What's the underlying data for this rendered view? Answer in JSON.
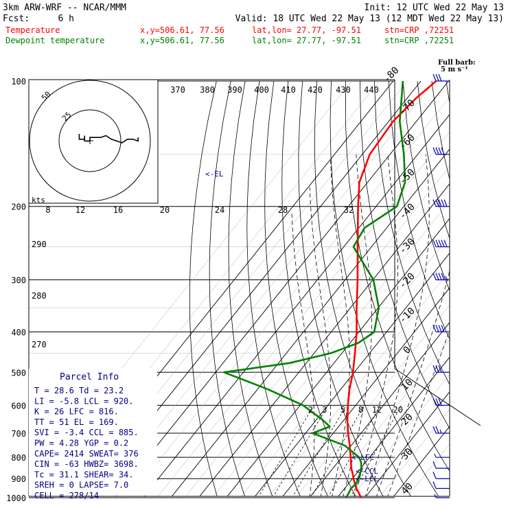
{
  "header": {
    "model": "3km ARW-WRF -- NCAR/MMM",
    "init": "Init: 12 UTC Wed 22 May 13",
    "fcst_label": "Fcst:",
    "fcst_value": "6 h",
    "valid": "Valid: 18 UTC Wed 22 May 13 (12 MDT Wed 22 May 13)",
    "temp_label": "Temperature",
    "dew_label": "Dewpoint temperature",
    "xy": "x,y=506.61, 77.56",
    "latlon": "lat,lon= 27.77, -97.51",
    "stn": "stn=CRP ,72251",
    "full_barb": "Full barb:",
    "full_barb_units": "5 m s⁻¹"
  },
  "colors": {
    "temperature": "#ff0000",
    "dewpoint": "#008000",
    "wind": "#0000c0",
    "parcel": "#000080"
  },
  "hodograph": {
    "ring_labels": [
      "25",
      "50"
    ],
    "kts_label": "kts"
  },
  "annotations": {
    "el": "<-EL",
    "lfc": "<-LFC",
    "ccl": "<-CCL",
    "lcl": "<-LCL"
  },
  "parcel_info": {
    "title": "Parcel Info",
    "rows": [
      "T   =   28.6  Td =  23.2",
      "LI  =   -5.8  LCL =  920.",
      "K   =     26  LFC =  816.",
      "TT  =     51  EL  =  169.",
      "SVI =   -3.4  CCL =  885.",
      "PW  =   4.28  YGP =   0.2",
      "CAPE=   2414  SWEAT=  376",
      "CIN =    -63  HWBZ= 3698.",
      "Tc  =   31.1  SHEAR=  34.",
      "SREH =     0  LAPSE=  7.0",
      "CELL = 278/14"
    ]
  },
  "chart_data": {
    "type": "line",
    "title": "",
    "ylabel": "",
    "xlabel": "",
    "pressure_axis_labels": [
      "100",
      "200",
      "300",
      "400",
      "500",
      "600",
      "700",
      "800",
      "900",
      "1000"
    ],
    "pressure_levels_hpa": [
      100,
      200,
      300,
      400,
      500,
      600,
      700,
      800,
      900,
      1000
    ],
    "isotherm_labels": [
      "-80",
      "-70",
      "-60",
      "-50",
      "-40",
      "-30",
      "-20",
      "-10",
      "0",
      "10",
      "20",
      "30",
      "40"
    ],
    "isotherm_values_c": [
      -80,
      -70,
      -60,
      -50,
      -40,
      -30,
      -20,
      -10,
      0,
      10,
      20,
      30,
      40
    ],
    "theta_labels": [
      "370",
      "380",
      "390",
      "400",
      "410",
      "420",
      "430",
      "440"
    ],
    "theta_values_k": [
      370,
      380,
      390,
      400,
      410,
      420,
      430,
      440
    ],
    "theta_e_labels": [
      "290",
      "280",
      "270"
    ],
    "theta_e_values_k": [
      290,
      280,
      270
    ],
    "mixing_ratio_labels_top": [
      "8",
      "12",
      "16",
      "20",
      "24",
      "28",
      "32"
    ],
    "mixing_ratio_labels_bottom": [
      "2",
      "3",
      "5",
      "8",
      "12",
      "20"
    ],
    "mixing_ratio_values_gkg": [
      2,
      3,
      5,
      8,
      12,
      20
    ],
    "series": [
      {
        "name": "Temperature",
        "p": [
          1000,
          975,
          950,
          925,
          900,
          875,
          850,
          800,
          750,
          700,
          650,
          600,
          550,
          500,
          450,
          400,
          350,
          300,
          250,
          200,
          175,
          150,
          125,
          110,
          100
        ],
        "t": [
          28.6,
          26.5,
          24.2,
          22.3,
          20.4,
          18.6,
          16.6,
          13.2,
          9.5,
          5.3,
          1.2,
          -2.8,
          -6.8,
          -10.5,
          -15.3,
          -20.8,
          -27.8,
          -35.5,
          -45.0,
          -56.5,
          -63.0,
          -67.3,
          -68.4,
          -66.8,
          -64.5
        ]
      },
      {
        "name": "Dewpoint temperature",
        "p": [
          1000,
          975,
          950,
          925,
          900,
          875,
          850,
          825,
          800,
          750,
          700,
          675,
          650,
          600,
          550,
          500,
          475,
          450,
          425,
          400,
          350,
          300,
          250,
          225,
          200,
          175,
          150,
          125,
          100
        ],
        "t": [
          23.2,
          22.8,
          22.3,
          22.8,
          22.0,
          21.3,
          20.2,
          18.6,
          16.3,
          7.8,
          -7.5,
          -3.2,
          -7.8,
          -19.0,
          -36.0,
          -57.0,
          -36.0,
          -24.0,
          -17.0,
          -14.5,
          -19.8,
          -29.8,
          -46.5,
          -48.0,
          -42.5,
          -46.5,
          -55.0,
          -66.0,
          -76.5
        ]
      }
    ],
    "wind_barbs": {
      "p": [
        1000,
        950,
        900,
        850,
        800,
        700,
        600,
        500,
        400,
        300,
        250,
        200,
        150,
        100
      ],
      "speed_ms": [
        3,
        5,
        5,
        5,
        2.5,
        12.5,
        15,
        15,
        20,
        22.5,
        25,
        25,
        20,
        15
      ],
      "direction_deg": [
        140,
        150,
        170,
        190,
        210,
        250,
        270,
        270,
        270,
        270,
        270,
        270,
        265,
        265
      ]
    },
    "hodograph": {
      "u": [
        -12,
        -12,
        -12,
        -6,
        -6,
        -6,
        0,
        0,
        6,
        12,
        18,
        24,
        30,
        36,
        42,
        48,
        54,
        54
      ],
      "v": [
        0,
        -1,
        -3,
        -3,
        -1,
        -4,
        -4,
        -2,
        -2,
        -2,
        -1,
        -3,
        -4,
        -5,
        -3,
        -3,
        -4,
        -2
      ]
    }
  }
}
